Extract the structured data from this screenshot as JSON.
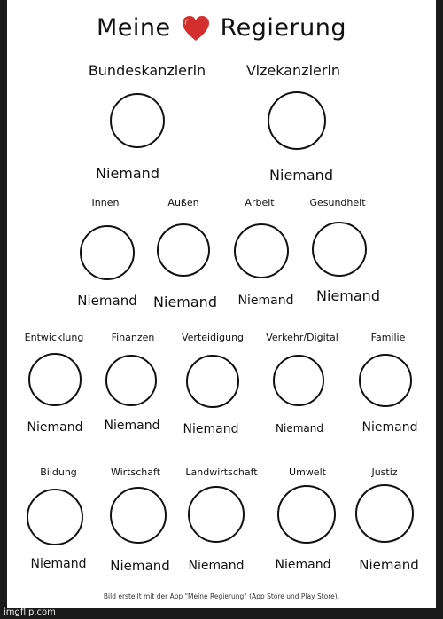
{
  "title": {
    "left": "Meine",
    "right": "Regierung",
    "heart_icon": "heart-icon",
    "heart_color": "#d32f2f"
  },
  "row1": [
    {
      "role": "Bundeskanzlerin",
      "name": "Niemand"
    },
    {
      "role": "Vizekanzlerin",
      "name": "Niemand"
    }
  ],
  "row2": [
    {
      "role": "Innen",
      "name": "Niemand"
    },
    {
      "role": "Außen",
      "name": "Niemand"
    },
    {
      "role": "Arbeit",
      "name": "Niemand"
    },
    {
      "role": "Gesundheit",
      "name": "Niemand"
    }
  ],
  "row3": [
    {
      "role": "Entwicklung",
      "name": "Niemand"
    },
    {
      "role": "Finanzen",
      "name": "Niemand"
    },
    {
      "role": "Verteidigung",
      "name": "Niemand"
    },
    {
      "role": "Verkehr/Digital",
      "name": "Niemand"
    },
    {
      "role": "Familie",
      "name": "Niemand"
    }
  ],
  "row4": [
    {
      "role": "Bildung",
      "name": "Niemand"
    },
    {
      "role": "Wirtschaft",
      "name": "Niemand"
    },
    {
      "role": "Landwirtschaft",
      "name": "Niemand"
    },
    {
      "role": "Umwelt",
      "name": "Niemand"
    },
    {
      "role": "Justiz",
      "name": "Niemand"
    }
  ],
  "footer": "Bild erstellt mit der App \"Meine Regierung\" (App Store und Play Store).",
  "watermark": "imgflip.com"
}
